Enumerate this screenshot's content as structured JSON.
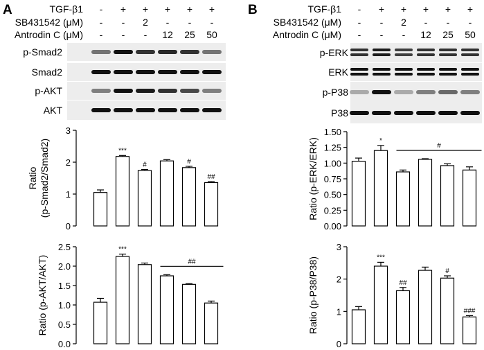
{
  "panels": [
    {
      "letter": "A",
      "conditions": [
        {
          "label": "TGF-β1",
          "values": [
            "-",
            "+",
            "+",
            "+",
            "+",
            "+"
          ]
        },
        {
          "label": "SB431542 (μM)",
          "values": [
            "-",
            "-",
            "2",
            "-",
            "-",
            "-"
          ]
        },
        {
          "label": "Antrodin C (μM)",
          "values": [
            "-",
            "-",
            "-",
            "12",
            "25",
            "50"
          ]
        }
      ],
      "blots": [
        "p-Smad2",
        "Smad2",
        "p-AKT",
        "AKT"
      ]
    },
    {
      "letter": "B",
      "conditions": [
        {
          "label": "TGF-β1",
          "values": [
            "-",
            "+",
            "+",
            "+",
            "+",
            "+"
          ]
        },
        {
          "label": "SB431542 (μM)",
          "values": [
            "-",
            "-",
            "2",
            "-",
            "-",
            "-"
          ]
        },
        {
          "label": "Antrodin C (μM)",
          "values": [
            "-",
            "-",
            "-",
            "12",
            "25",
            "50"
          ]
        }
      ],
      "blots": [
        "p-ERK",
        "ERK",
        "p-P38",
        "P38"
      ]
    }
  ],
  "chart_data": [
    {
      "type": "bar",
      "panel": "A",
      "ylabel": "Ratio\n(p-Smad2/Smad2)",
      "ylim": [
        0,
        3
      ],
      "yticks": [
        "0",
        "1",
        "2",
        "3"
      ],
      "values": [
        1.05,
        2.18,
        1.74,
        2.04,
        1.83,
        1.36
      ],
      "errors": [
        0.08,
        0.03,
        0.03,
        0.04,
        0.04,
        0.03
      ],
      "significance": [
        "",
        "***",
        "#",
        "",
        "#",
        "##"
      ],
      "bracket": null
    },
    {
      "type": "bar",
      "panel": "A",
      "ylabel": "Ratio (p-AKT/AKT)",
      "ylim": [
        0,
        2.5
      ],
      "yticks": [
        "0.0",
        "0.5",
        "1.0",
        "1.5",
        "2.0",
        "2.5"
      ],
      "values": [
        1.07,
        2.25,
        2.04,
        1.75,
        1.53,
        1.05
      ],
      "errors": [
        0.1,
        0.06,
        0.04,
        0.03,
        0.02,
        0.05
      ],
      "significance": [
        "",
        "***",
        "",
        "",
        "",
        ""
      ],
      "bracket": {
        "from": 3,
        "to": 5,
        "label": "##"
      }
    },
    {
      "type": "bar",
      "panel": "B",
      "ylabel": "Ratio (p-ERK/ERK)",
      "ylim": [
        0,
        1.5
      ],
      "yticks": [
        "0.00",
        "0.25",
        "0.50",
        "0.75",
        "1.00",
        "1.25",
        "1.50"
      ],
      "values": [
        1.03,
        1.2,
        0.86,
        1.06,
        0.96,
        0.89
      ],
      "errors": [
        0.05,
        0.08,
        0.03,
        0.01,
        0.03,
        0.05
      ],
      "significance": [
        "",
        "*",
        "",
        "",
        "",
        ""
      ],
      "bracket": {
        "from": 2,
        "to": 5,
        "label": "#"
      }
    },
    {
      "type": "bar",
      "panel": "B",
      "ylabel": "Ratio (p-P38/P38)",
      "ylim": [
        0,
        3
      ],
      "yticks": [
        "0",
        "1",
        "2",
        "3"
      ],
      "values": [
        1.05,
        2.4,
        1.64,
        2.27,
        2.03,
        0.83
      ],
      "errors": [
        0.1,
        0.12,
        0.1,
        0.1,
        0.07,
        0.04
      ],
      "significance": [
        "",
        "***",
        "##",
        "",
        "#",
        "###"
      ],
      "bracket": null
    }
  ]
}
